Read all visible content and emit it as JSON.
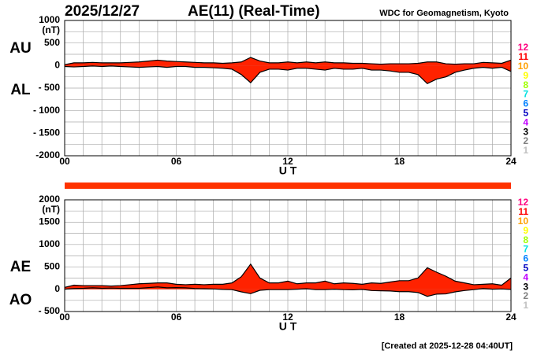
{
  "date": "2025/12/27",
  "title": "AE(11) (Real-Time)",
  "source": "WDC for Geomagnetism, Kyoto",
  "footer": "[Created at 2025-12-28 04:40UT]",
  "station_legend": [
    {
      "label": "12",
      "color": "#ff0080"
    },
    {
      "label": "11",
      "color": "#ff0000"
    },
    {
      "label": "10",
      "color": "#ffa000"
    },
    {
      "label": "9",
      "color": "#ffff00"
    },
    {
      "label": "8",
      "color": "#a0ff00"
    },
    {
      "label": "7",
      "color": "#00e0e0"
    },
    {
      "label": "6",
      "color": "#0080ff"
    },
    {
      "label": "5",
      "color": "#0000c0"
    },
    {
      "label": "4",
      "color": "#c000ff"
    },
    {
      "label": "3",
      "color": "#000000"
    },
    {
      "label": "2",
      "color": "#808080"
    },
    {
      "label": "1",
      "color": "#c0c0c0"
    }
  ],
  "chart_data": [
    {
      "type": "area",
      "xlabel": "U T",
      "y_unit": "(nT)",
      "x": [
        0,
        0.5,
        1,
        1.5,
        2,
        2.5,
        3,
        3.5,
        4,
        4.5,
        5,
        5.5,
        6,
        6.5,
        7,
        7.5,
        8,
        8.5,
        9,
        9.5,
        10,
        10.5,
        11,
        11.5,
        12,
        12.5,
        13,
        13.5,
        14,
        14.5,
        15,
        15.5,
        16,
        16.5,
        17,
        17.5,
        18,
        18.5,
        19,
        19.5,
        20,
        20.5,
        21,
        21.5,
        22,
        22.5,
        23,
        23.5,
        24
      ],
      "xlim": [
        0,
        24
      ],
      "xticks": [
        {
          "value": 0,
          "label": "00"
        },
        {
          "value": 1,
          "label": null
        },
        {
          "value": 2,
          "label": null
        },
        {
          "value": 3,
          "label": null
        },
        {
          "value": 4,
          "label": null
        },
        {
          "value": 5,
          "label": null
        },
        {
          "value": 6,
          "label": "06"
        },
        {
          "value": 7,
          "label": null
        },
        {
          "value": 8,
          "label": null
        },
        {
          "value": 9,
          "label": null
        },
        {
          "value": 10,
          "label": null
        },
        {
          "value": 11,
          "label": null
        },
        {
          "value": 12,
          "label": "12"
        },
        {
          "value": 13,
          "label": null
        },
        {
          "value": 14,
          "label": null
        },
        {
          "value": 15,
          "label": null
        },
        {
          "value": 16,
          "label": null
        },
        {
          "value": 17,
          "label": null
        },
        {
          "value": 18,
          "label": "18"
        },
        {
          "value": 19,
          "label": null
        },
        {
          "value": 20,
          "label": null
        },
        {
          "value": 21,
          "label": null
        },
        {
          "value": 22,
          "label": null
        },
        {
          "value": 23,
          "label": null
        },
        {
          "value": 24,
          "label": "24"
        }
      ],
      "ylim": [
        -2000,
        1000
      ],
      "yticks": [
        -2000,
        {
          "value": -1750,
          "label": null
        },
        {
          "value": -1500,
          "label": "- 1500"
        },
        {
          "value": -1250,
          "label": null
        },
        {
          "value": -1000,
          "label": "- 1000"
        },
        {
          "value": -750,
          "label": null
        },
        {
          "value": -500,
          "label": "- 500"
        },
        {
          "value": -250,
          "label": null
        },
        0,
        {
          "value": 250,
          "label": null
        },
        500,
        {
          "value": 750,
          "label": null
        },
        1000
      ],
      "grid": true,
      "series": [
        {
          "name": "AU",
          "color": "#ff2200",
          "values": [
            20,
            60,
            60,
            70,
            60,
            60,
            60,
            70,
            80,
            100,
            120,
            100,
            90,
            80,
            70,
            60,
            60,
            50,
            60,
            80,
            180,
            100,
            60,
            60,
            80,
            60,
            80,
            60,
            80,
            60,
            60,
            50,
            50,
            40,
            30,
            40,
            40,
            40,
            50,
            80,
            80,
            40,
            30,
            40,
            40,
            70,
            60,
            50,
            120
          ]
        },
        {
          "name": "AL",
          "color": "#ff2200",
          "values": [
            -20,
            -30,
            -20,
            -10,
            -20,
            -10,
            -20,
            -30,
            -40,
            -30,
            -20,
            -40,
            -20,
            -20,
            -40,
            -40,
            -50,
            -60,
            -80,
            -200,
            -380,
            -150,
            -80,
            -80,
            -100,
            -60,
            -60,
            -80,
            -100,
            -60,
            -80,
            -80,
            -60,
            -100,
            -100,
            -120,
            -150,
            -150,
            -200,
            -400,
            -300,
            -250,
            -150,
            -100,
            -60,
            -40,
            -60,
            -40,
            -130
          ]
        }
      ]
    },
    {
      "type": "area",
      "xlabel": "U T",
      "y_unit": "(nT)",
      "x": [
        0,
        0.5,
        1,
        1.5,
        2,
        2.5,
        3,
        3.5,
        4,
        4.5,
        5,
        5.5,
        6,
        6.5,
        7,
        7.5,
        8,
        8.5,
        9,
        9.5,
        10,
        10.5,
        11,
        11.5,
        12,
        12.5,
        13,
        13.5,
        14,
        14.5,
        15,
        15.5,
        16,
        16.5,
        17,
        17.5,
        18,
        18.5,
        19,
        19.5,
        20,
        20.5,
        21,
        21.5,
        22,
        22.5,
        23,
        23.5,
        24
      ],
      "xlim": [
        0,
        24
      ],
      "xticks": [
        {
          "value": 0,
          "label": "00"
        },
        {
          "value": 1,
          "label": null
        },
        {
          "value": 2,
          "label": null
        },
        {
          "value": 3,
          "label": null
        },
        {
          "value": 4,
          "label": null
        },
        {
          "value": 5,
          "label": null
        },
        {
          "value": 6,
          "label": "06"
        },
        {
          "value": 7,
          "label": null
        },
        {
          "value": 8,
          "label": null
        },
        {
          "value": 9,
          "label": null
        },
        {
          "value": 10,
          "label": null
        },
        {
          "value": 11,
          "label": null
        },
        {
          "value": 12,
          "label": "12"
        },
        {
          "value": 13,
          "label": null
        },
        {
          "value": 14,
          "label": null
        },
        {
          "value": 15,
          "label": null
        },
        {
          "value": 16,
          "label": null
        },
        {
          "value": 17,
          "label": null
        },
        {
          "value": 18,
          "label": "18"
        },
        {
          "value": 19,
          "label": null
        },
        {
          "value": 20,
          "label": null
        },
        {
          "value": 21,
          "label": null
        },
        {
          "value": 22,
          "label": null
        },
        {
          "value": 23,
          "label": null
        },
        {
          "value": 24,
          "label": "24"
        }
      ],
      "ylim": [
        -500,
        2000
      ],
      "yticks": [
        {
          "value": -500,
          "label": "- 500"
        },
        {
          "value": -250,
          "label": null
        },
        0,
        {
          "value": 250,
          "label": null
        },
        500,
        {
          "value": 750,
          "label": null
        },
        1000,
        {
          "value": 1250,
          "label": null
        },
        1500,
        {
          "value": 1750,
          "label": null
        },
        2000
      ],
      "grid": true,
      "series": [
        {
          "name": "AE",
          "color": "#ff2200",
          "values": [
            40,
            90,
            80,
            80,
            80,
            70,
            80,
            100,
            120,
            130,
            140,
            140,
            110,
            100,
            110,
            100,
            110,
            110,
            140,
            280,
            560,
            250,
            140,
            140,
            180,
            120,
            140,
            140,
            180,
            120,
            140,
            130,
            110,
            140,
            130,
            160,
            190,
            190,
            250,
            480,
            380,
            290,
            180,
            140,
            100,
            110,
            120,
            90,
            250
          ]
        },
        {
          "name": "AO",
          "color": "#ff2200",
          "values": [
            0,
            15,
            20,
            30,
            20,
            25,
            20,
            20,
            20,
            35,
            50,
            30,
            35,
            30,
            15,
            10,
            5,
            -5,
            -10,
            -60,
            -100,
            -25,
            -10,
            -10,
            -10,
            0,
            10,
            -10,
            -10,
            0,
            -10,
            -15,
            -5,
            -30,
            -35,
            -40,
            -55,
            -55,
            -75,
            -160,
            -110,
            -105,
            -60,
            -30,
            -10,
            15,
            0,
            5,
            -5
          ]
        }
      ]
    }
  ]
}
